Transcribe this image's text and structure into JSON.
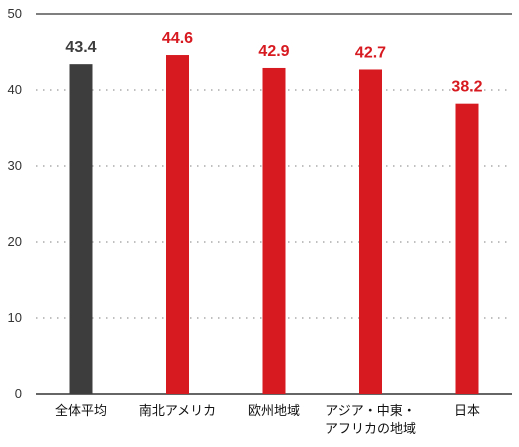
{
  "chart_data": {
    "type": "bar",
    "categories": [
      "全体平均",
      "南北アメリカ",
      "欧州地域",
      "アジア・中東・アフリカの地域",
      "日本"
    ],
    "category_lines": [
      [
        "全体平均"
      ],
      [
        "南北アメリカ"
      ],
      [
        "欧州地域"
      ],
      [
        "アジア・中東・",
        "アフリカの地域"
      ],
      [
        "日本"
      ]
    ],
    "values": [
      43.4,
      44.6,
      42.9,
      42.7,
      38.2
    ],
    "value_labels": [
      "43.4",
      "44.6",
      "42.9",
      "42.7",
      "38.2"
    ],
    "bar_colors": [
      "#3d3d3d",
      "#d71920",
      "#d71920",
      "#d71920",
      "#d71920"
    ],
    "label_colors": [
      "#3d3d3d",
      "#d71920",
      "#d71920",
      "#d71920",
      "#d71920"
    ],
    "ylim": [
      0,
      50
    ],
    "yticks": [
      0,
      10,
      20,
      30,
      40,
      50
    ],
    "grid": true,
    "title": "",
    "xlabel": "",
    "ylabel": ""
  }
}
